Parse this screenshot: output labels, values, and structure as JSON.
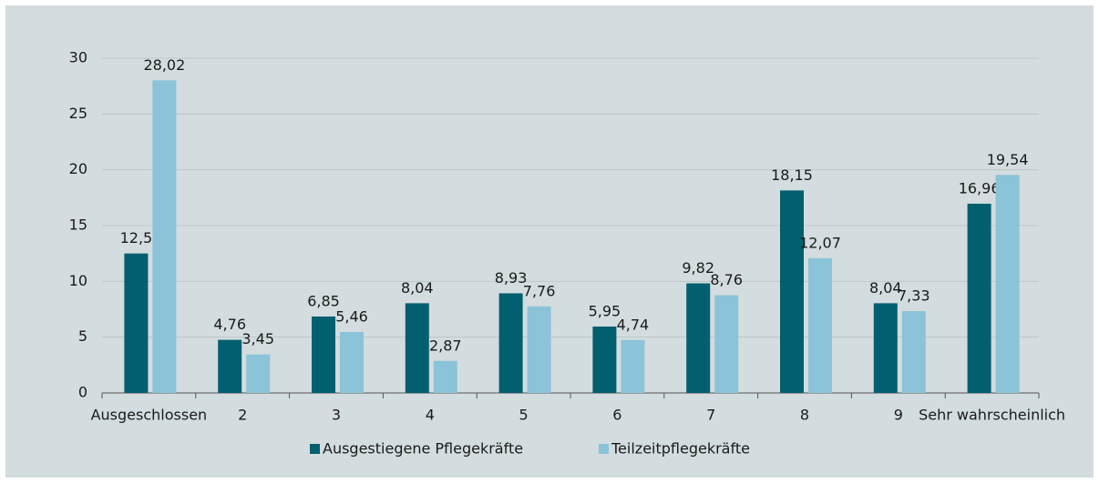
{
  "chart_data": {
    "type": "bar",
    "categories": [
      "Ausgeschlossen",
      "2",
      "3",
      "4",
      "5",
      "6",
      "7",
      "8",
      "9",
      "Sehr wahrscheinlich"
    ],
    "series": [
      {
        "name": "Ausgestiegene Pflegekräfte",
        "color": "#025f70",
        "values": [
          12.5,
          4.76,
          6.85,
          8.04,
          8.93,
          5.95,
          9.82,
          18.15,
          8.04,
          16.96
        ],
        "value_labels": [
          "12,5",
          "4,76",
          "6,85",
          "8,04",
          "8,93",
          "5,95",
          "9,82",
          "18,15",
          "8,04",
          "16,96"
        ]
      },
      {
        "name": "Teilzeitpflegekräfte",
        "color": "#8bc3d9",
        "values": [
          28.02,
          3.45,
          5.46,
          2.87,
          7.76,
          4.74,
          8.76,
          12.07,
          7.33,
          19.54
        ],
        "value_labels": [
          "28,02",
          "3,45",
          "5,46",
          "2,87",
          "7,76",
          "4,74",
          "8,76",
          "12,07",
          "7,33",
          "19,54"
        ]
      }
    ],
    "ylim": [
      0,
      30
    ],
    "yticks": [
      0,
      5,
      10,
      15,
      20,
      25,
      30
    ],
    "grid": true,
    "legend": "bottom"
  }
}
